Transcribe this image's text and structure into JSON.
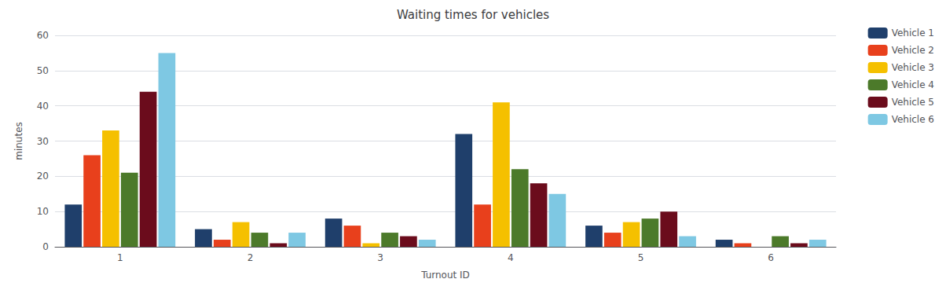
{
  "chart_data": {
    "type": "bar",
    "title": "Waiting times for vehicles",
    "x_label": "Turnout ID",
    "y_label": "minutes",
    "categories": [
      "1",
      "2",
      "3",
      "4",
      "5",
      "6"
    ],
    "series": [
      {
        "name": "Vehicle 1",
        "color": "#1F3F6B",
        "values": [
          12,
          5,
          8,
          32,
          6,
          2
        ]
      },
      {
        "name": "Vehicle 2",
        "color": "#E8401C",
        "values": [
          26,
          2,
          6,
          12,
          4,
          1
        ]
      },
      {
        "name": "Vehicle 3",
        "color": "#F5C000",
        "values": [
          33,
          7,
          1,
          41,
          7,
          0
        ]
      },
      {
        "name": "Vehicle 4",
        "color": "#4C7A2A",
        "values": [
          21,
          4,
          4,
          22,
          8,
          3
        ]
      },
      {
        "name": "Vehicle 5",
        "color": "#6B0C1C",
        "values": [
          44,
          1,
          3,
          18,
          10,
          1
        ]
      },
      {
        "name": "Vehicle 6",
        "color": "#7EC8E3",
        "values": [
          55,
          4,
          2,
          15,
          3,
          2
        ]
      }
    ],
    "ylim": [
      0,
      60
    ],
    "yticks": [
      0,
      10,
      20,
      30,
      40,
      50,
      60
    ],
    "grid": true,
    "legend": "right"
  }
}
